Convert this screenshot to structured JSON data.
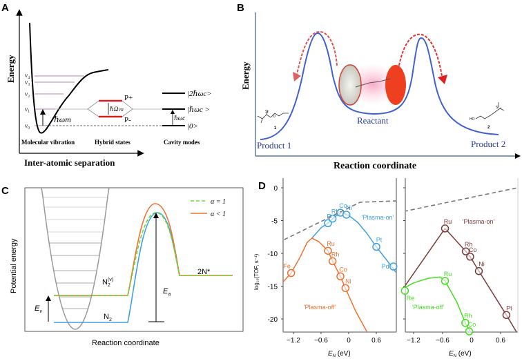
{
  "panel_a": {
    "label": "A",
    "y_axis": "Energy",
    "x_axis": "Inter-atomic separation",
    "levels": [
      "ν₀",
      "ν₁",
      "ν₂",
      "ν₃",
      "ν₄"
    ],
    "hbar_omega_m": "ℏωm",
    "p_plus": "P+",
    "p_minus": "P-",
    "rabi": "ℏΩ",
    "rabi_sub": "VR",
    "cavity_states": [
      "|2ℏωc>",
      "|ℏωc >",
      "|0>"
    ],
    "hbar_omega_c": "ℏωc",
    "captions": [
      "Molecular vibration",
      "Hybrid states",
      "Cavity modes"
    ]
  },
  "panel_b": {
    "label": "B",
    "y_axis": "Energy",
    "x_axis": "Reaction coordinate",
    "product1": "Product 1",
    "product2": "Product 2",
    "reactant": "Reactant",
    "mol1_num": "1",
    "mol2_num": "2",
    "si": "Si",
    "o": "O",
    "ho": "HO"
  },
  "panel_c": {
    "label": "C",
    "y_axis": "Potential energy",
    "x_axis": "Reaction coordinate",
    "legend": [
      "α = 1",
      "α < 1"
    ],
    "n2v": "N",
    "n2v_sub": "2",
    "n2v_sup": "(v)",
    "n2": "N",
    "n2_sub": "2",
    "two_n": "2N*",
    "ea": "E",
    "ea_sub": "a",
    "ev": "E",
    "ev_sub": "v",
    "colors": {
      "alpha1": "#66dd33",
      "alpha_lt1": "#f07030",
      "ground": "#3fa0e0",
      "well": "#999999"
    }
  },
  "panel_d": {
    "label": "D",
    "y_axis": "log₁₀(TOF, s⁻¹)",
    "x_axis": "E",
    "x_axis_sub": "N",
    "x_axis_unit": " (eV)",
    "chart_data": [
      {
        "type": "line",
        "xlim": [
          -1.43,
          1.04
        ],
        "ylim": [
          -22,
          0
        ],
        "x_ticks": [
          "-1.2",
          "-0.6",
          "0",
          "0.6"
        ],
        "y_ticks": [
          "0",
          "-5",
          "-10",
          "-15",
          "-20"
        ],
        "series": [
          {
            "name": "'Plasma-on'",
            "color": "#3fa0e0",
            "points": [
              {
                "label": "Ru",
                "x": -0.45,
                "y": -5.4
              },
              {
                "label": "Rh",
                "x": -0.35,
                "y": -4.7
              },
              {
                "label": "Co",
                "x": -0.18,
                "y": -3.8
              },
              {
                "label": "Ni",
                "x": -0.05,
                "y": -4.1
              },
              {
                "label": "Pt",
                "x": 0.6,
                "y": -9.0
              },
              {
                "label": "Pd",
                "x": 0.97,
                "y": -12.0
              }
            ],
            "curve": [
              [
                -0.8,
                -7.7
              ],
              [
                -0.6,
                -6.1
              ],
              [
                -0.45,
                -5.4
              ],
              [
                -0.3,
                -4.4
              ],
              [
                -0.15,
                -3.8
              ],
              [
                0,
                -4.2
              ],
              [
                0.2,
                -5.3
              ],
              [
                0.4,
                -7
              ],
              [
                0.6,
                -9
              ],
              [
                0.8,
                -10.8
              ],
              [
                1.04,
                -13
              ]
            ]
          },
          {
            "name": "'Plasma-off'",
            "color": "#f07030",
            "points": [
              {
                "label": "Fe",
                "x": -1.25,
                "y": -13.0
              },
              {
                "label": "Ru",
                "x": -0.45,
                "y": -9.6
              },
              {
                "label": "Rh",
                "x": -0.35,
                "y": -11.2
              },
              {
                "label": "Co",
                "x": -0.18,
                "y": -13.5
              },
              {
                "label": "Ni",
                "x": -0.07,
                "y": -15.3
              }
            ],
            "curve": [
              [
                -1.43,
                -14.4
              ],
              [
                -1.25,
                -13
              ],
              [
                -1.05,
                -10.5
              ],
              [
                -0.9,
                -8.3
              ],
              [
                -0.8,
                -7.7
              ],
              [
                -0.65,
                -8.2
              ],
              [
                -0.45,
                -9.6
              ],
              [
                -0.35,
                -11.2
              ],
              [
                -0.18,
                -13.5
              ],
              [
                -0.07,
                -15.3
              ],
              [
                0.15,
                -18.8
              ],
              [
                0.4,
                -22
              ]
            ]
          },
          {
            "name": "",
            "color": "#777777",
            "dashed": true,
            "points": [],
            "curve": [
              [
                -1.4,
                -7.9
              ],
              [
                0.25,
                -2.2
              ],
              [
                1.04,
                -2.0
              ]
            ]
          }
        ]
      },
      {
        "type": "line",
        "xlim": [
          -1.43,
          0.96
        ],
        "ylim": [
          -22,
          0
        ],
        "x_ticks": [
          "-1.2",
          "-0.6",
          "0",
          "0.6"
        ],
        "series": [
          {
            "name": "'Plasma-on'",
            "color": "#7a3a3a",
            "points": [
              {
                "label": "Ru",
                "x": -0.55,
                "y": -6.2
              },
              {
                "label": "Rh",
                "x": -0.12,
                "y": -9.7
              },
              {
                "label": "Co",
                "x": -0.03,
                "y": -10.5
              },
              {
                "label": "Ni",
                "x": 0.15,
                "y": -12.7
              },
              {
                "label": "Pt",
                "x": 0.72,
                "y": -19.4
              }
            ],
            "curve": [
              [
                -1.43,
                -15.5
              ],
              [
                -0.55,
                -6.2
              ],
              [
                -0.12,
                -9.7
              ],
              [
                -0.03,
                -10.5
              ],
              [
                0.15,
                -12.7
              ],
              [
                0.72,
                -19.4
              ],
              [
                0.93,
                -22
              ]
            ]
          },
          {
            "name": "'Plasma-off'",
            "color": "#44dd22",
            "points": [
              {
                "label": "Re",
                "x": -1.38,
                "y": -15.7
              },
              {
                "label": "Ru",
                "x": -0.55,
                "y": -14.2
              },
              {
                "label": "Rh",
                "x": -0.13,
                "y": -20.6
              },
              {
                "label": "Co",
                "x": -0.05,
                "y": -21.9
              }
            ],
            "curve": [
              [
                -1.43,
                -15.4
              ],
              [
                -1.2,
                -14.5
              ],
              [
                -0.9,
                -13.8
              ],
              [
                -0.65,
                -13.6
              ],
              [
                -0.55,
                -14.2
              ],
              [
                -0.3,
                -17.5
              ],
              [
                -0.13,
                -20.6
              ],
              [
                -0.02,
                -22
              ]
            ]
          },
          {
            "name": "",
            "color": "#777777",
            "dashed": true,
            "points": [],
            "curve": [
              [
                -1.4,
                -3.6
              ],
              [
                0.95,
                0
              ]
            ]
          }
        ]
      }
    ]
  }
}
